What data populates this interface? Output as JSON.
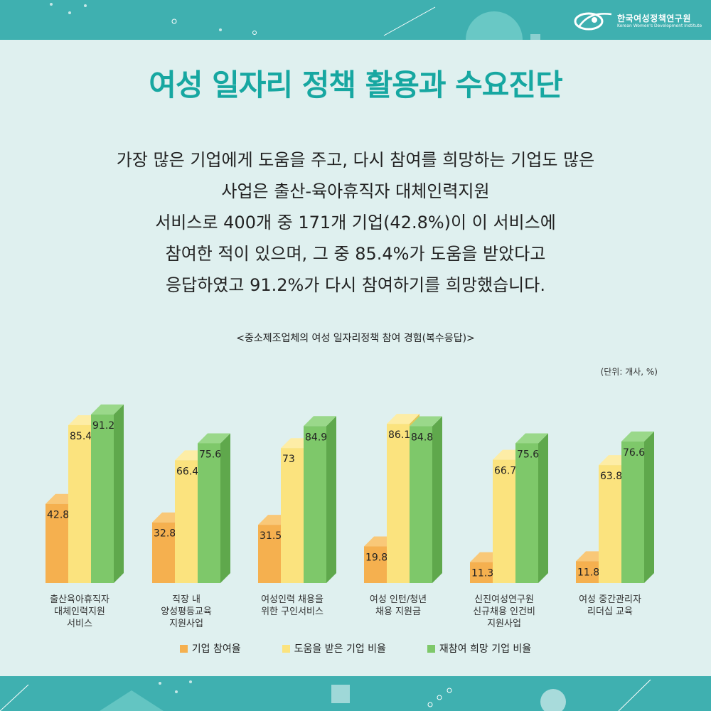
{
  "header": {
    "org_name_ko": "한국여성정책연구원",
    "org_name_en": "Korean Women's Development Institute"
  },
  "title": "여성 일자리 정책 활용과 수요진단",
  "description": [
    "가장 많은 기업에게 도움을 주고, 다시 참여를 희망하는 기업도 많은",
    "사업은 출산-육아휴직자 대체인력지원",
    "서비스로 400개 중 171개 기업(42.8%)이 이 서비스에",
    "참여한 적이 있으며, 그 중 85.4%가 도움을 받았다고",
    "응답하였고 91.2%가 다시 참여하기를 희망했습니다."
  ],
  "chart_data": {
    "type": "bar",
    "title": "<중소제조업체의 여성 일자리정책 참여 경험(복수응답)>",
    "unit": "(단위: 개사, %)",
    "categories": [
      [
        "출산육아휴직자",
        "대체인력지원",
        "서비스"
      ],
      [
        "직장 내",
        "양성평등교육",
        "지원사업"
      ],
      [
        "여성인력 채용을",
        "위한 구인서비스"
      ],
      [
        "여성 인턴/청년",
        "채용 지원금"
      ],
      [
        "신진여성연구원",
        "신규채용 인건비",
        "지원사업"
      ],
      [
        "여성 중간관리자",
        "리더십 교육"
      ]
    ],
    "series": [
      {
        "name": "기업 참여율",
        "color": "#f5b04f",
        "values": [
          42.8,
          32.8,
          31.5,
          19.8,
          11.3,
          11.8
        ]
      },
      {
        "name": "도움을 받은 기업 비율",
        "color": "#fbe37e",
        "values": [
          85.4,
          66.4,
          73,
          86.1,
          66.7,
          63.8
        ]
      },
      {
        "name": "재참여 희망 기업 비율",
        "color": "#7ec86a",
        "values": [
          91.2,
          75.6,
          84.9,
          84.8,
          75.6,
          76.6
        ]
      }
    ],
    "ylim": [
      0,
      100
    ],
    "legend_position": "bottom"
  }
}
